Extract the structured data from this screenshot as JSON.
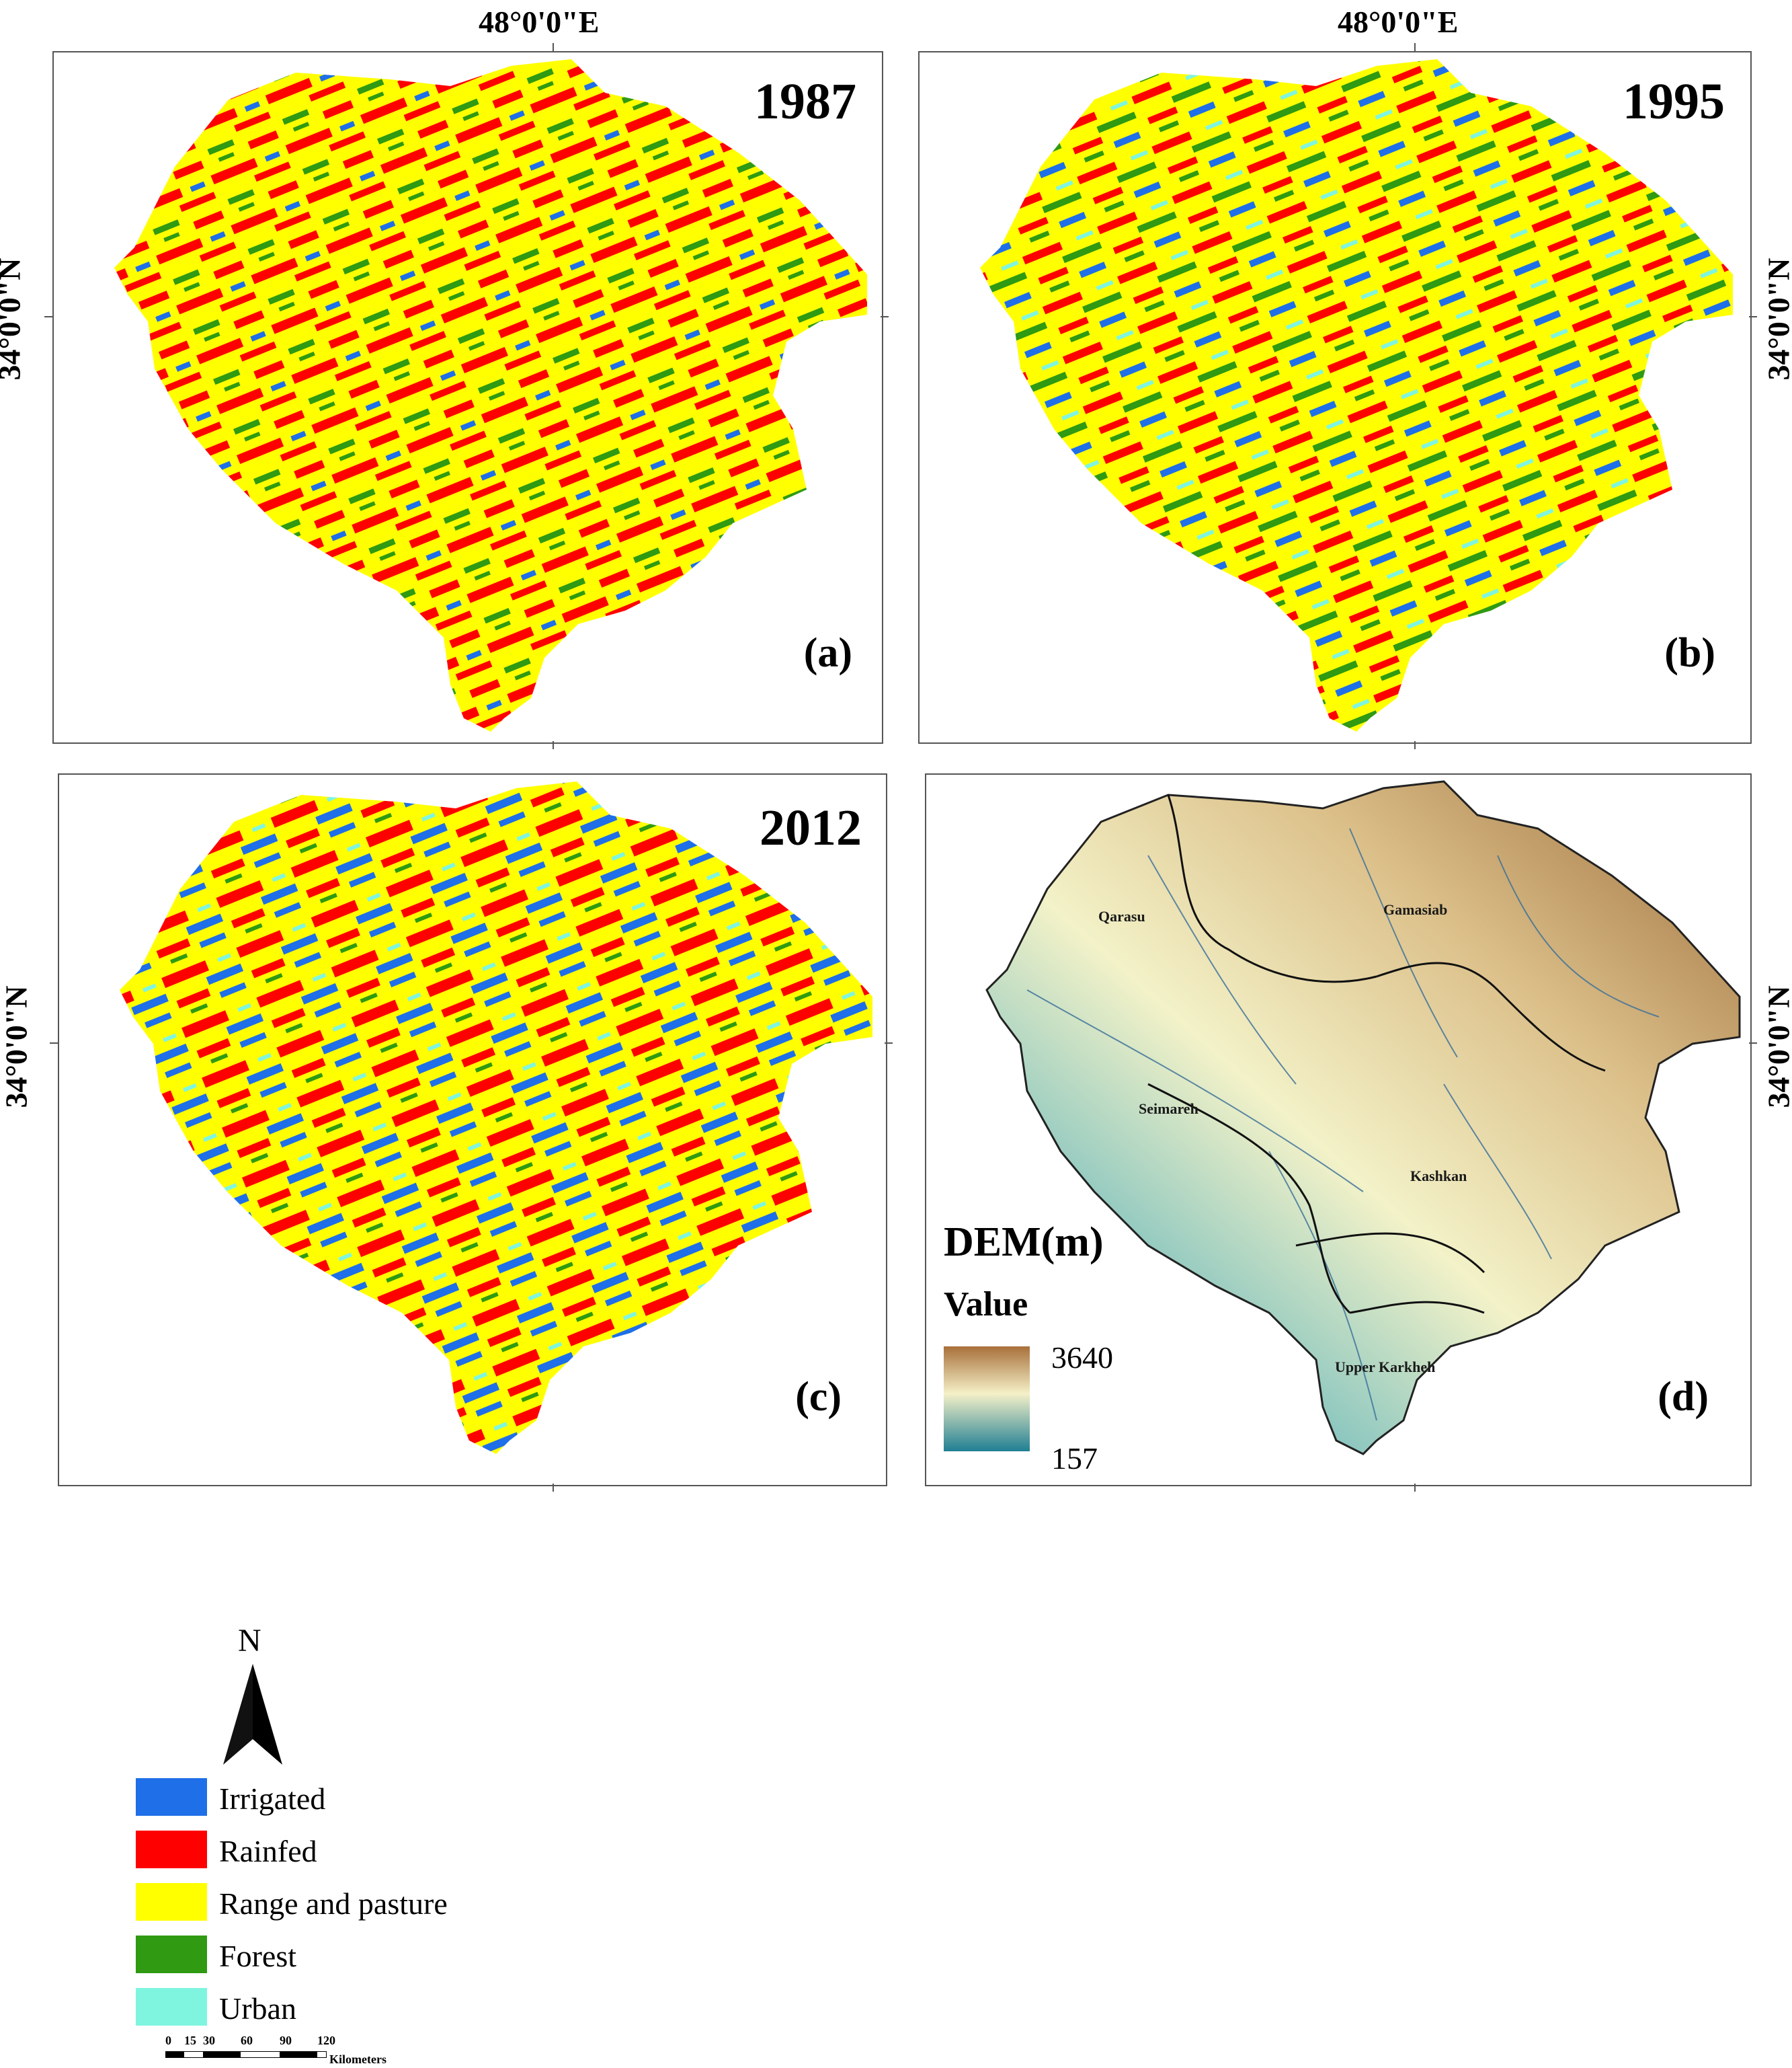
{
  "coords": {
    "lon_label": "48°0'0\"E",
    "lat_label": "34°0'0\"N"
  },
  "panels": [
    {
      "year": "1987",
      "label": "(a)"
    },
    {
      "year": "1995",
      "label": "(b)"
    },
    {
      "year": "2012",
      "label": "(c)"
    },
    {
      "year": "",
      "label": "(d)"
    }
  ],
  "dem": {
    "title": "DEM(m)",
    "value_label": "Value",
    "max": "3640",
    "min": "157",
    "basins": [
      "Qarasu",
      "Gamasiab",
      "Seimareh",
      "Kashkan",
      "Upper Karkheh"
    ]
  },
  "north": "N",
  "legend": [
    {
      "label": "Irrigated",
      "color": "#1f6fe8"
    },
    {
      "label": "Rainfed",
      "color": "#ff0000"
    },
    {
      "label": "Range and pasture",
      "color": "#ffff00"
    },
    {
      "label": "Forest",
      "color": "#2f9a12"
    },
    {
      "label": "Urban",
      "color": "#7ff5df"
    }
  ],
  "scalebar": {
    "ticks": [
      "0",
      "15",
      "30",
      "60",
      "90",
      "120"
    ],
    "unit": "Kilometers"
  }
}
